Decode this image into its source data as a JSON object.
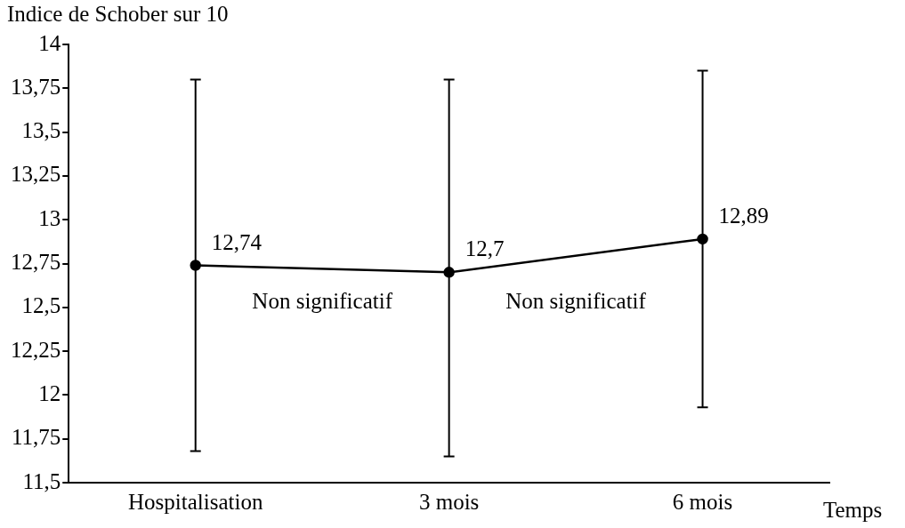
{
  "chart_data": {
    "type": "line",
    "ylabel": "Indice de Schober sur 10",
    "xlabel": "Temps",
    "categories": [
      "Hospitalisation",
      "3 mois",
      "6 mois"
    ],
    "series": [
      {
        "color": "#000000",
        "values": [
          12.74,
          12.7,
          12.89
        ],
        "errors": [
          [
            11.68,
            13.8
          ],
          [
            11.65,
            13.8
          ],
          [
            11.93,
            13.85
          ]
        ]
      }
    ],
    "ylim": [
      11.5,
      14
    ],
    "yticks": [
      {
        "value": 11.5,
        "label": "11,5"
      },
      {
        "value": 11.75,
        "label": "11,75"
      },
      12,
      {
        "value": 12.25,
        "label": "12,25"
      },
      {
        "value": 12.5,
        "label": "12,5"
      },
      {
        "value": 12.75,
        "label": "12,75"
      },
      13,
      {
        "value": 13.25,
        "label": "13,25"
      },
      {
        "value": 13.5,
        "label": "13,5"
      },
      {
        "value": 13.75,
        "label": "13,75"
      },
      14
    ],
    "value_labels": [
      "12,74",
      "12,7",
      "12,89"
    ],
    "annotations": [
      "Non significatif",
      "Non significatif"
    ],
    "marker": "circle",
    "line_style": "solid",
    "grid": false,
    "legend": false
  }
}
